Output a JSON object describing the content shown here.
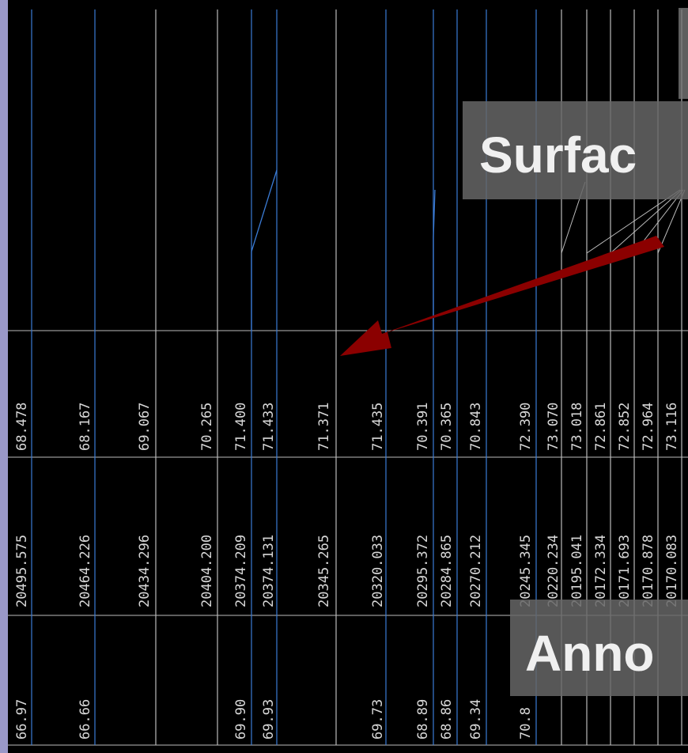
{
  "columns": [
    {
      "top": "68.478",
      "middle": "20495.575",
      "bottom": "66.97"
    },
    {
      "top": "68.167",
      "middle": "20464.226",
      "bottom": "66.66"
    },
    {
      "top": "69.067",
      "middle": "20434.296"
    },
    {
      "top": "70.265",
      "middle": "20404.200"
    },
    {
      "top": "71.400",
      "middle": "20374.209",
      "bottom": "69.90"
    },
    {
      "top": "71.433",
      "middle": "20374.131",
      "bottom": "69.93"
    },
    {
      "top": "71.371",
      "middle": "20345.265"
    },
    {
      "top": "71.435",
      "middle": "20320.033",
      "bottom": "69.73"
    },
    {
      "top": "70.391",
      "middle": "20295.372",
      "bottom": "68.89"
    },
    {
      "top": "70.365",
      "middle": "20284.865",
      "bottom": "68.86"
    },
    {
      "top": "70.843",
      "middle": "20270.212",
      "bottom": "69.34"
    },
    {
      "top": "72.390",
      "middle": "20245.345",
      "bottom": "70.8"
    },
    {
      "top": "73.070",
      "middle": "20220.234"
    },
    {
      "top": "73.018",
      "middle": "20195.041"
    },
    {
      "top": "72.861",
      "middle": "20172.334"
    },
    {
      "top": "72.852",
      "middle": "20171.693"
    },
    {
      "top": "72.964",
      "middle": "20170.878"
    },
    {
      "top": "73.116",
      "middle": "20170.083"
    }
  ],
  "callouts": {
    "surface": "Surfac",
    "annotation": "Anno"
  }
}
